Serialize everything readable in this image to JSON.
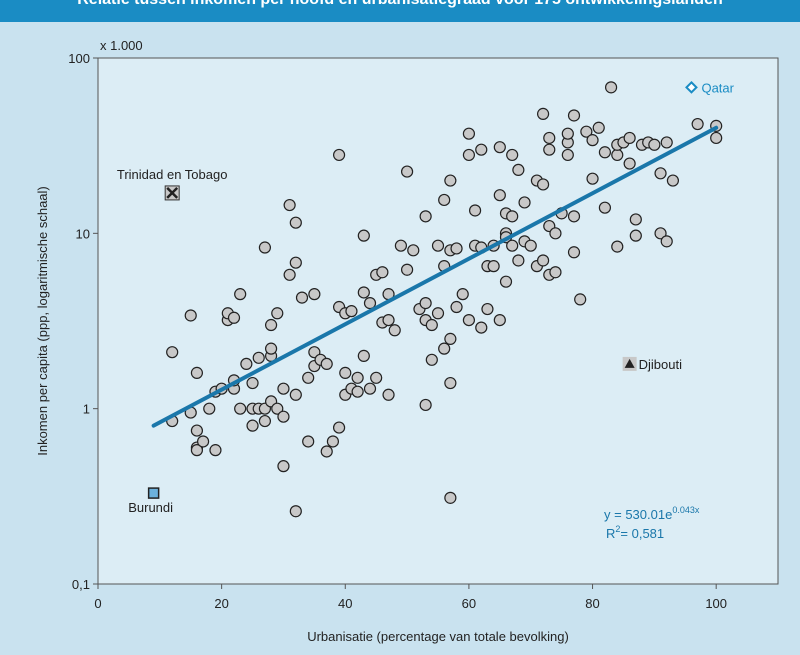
{
  "title": "Relatie tussen inkomen per hoofd en urbanisatiegraad voor 175 ontwikkelingslanden",
  "chart_data": {
    "type": "scatter",
    "xlabel": "Urbanisatie (percentage van totale bevolking)",
    "ylabel": "Inkomen per capita (ppp, logaritmische schaal)",
    "y_unit_note": "x 1.000",
    "xlim": [
      0,
      110
    ],
    "ylim": [
      0.1,
      100
    ],
    "y_scale": "log",
    "grid": false,
    "x_ticks": [
      0,
      20,
      40,
      60,
      80,
      100
    ],
    "x_tick_labels": [
      "0",
      "20",
      "40",
      "60",
      "80",
      "100"
    ],
    "y_ticks": [
      0.1,
      1,
      10,
      100
    ],
    "y_tick_labels": [
      "0,1",
      "1",
      "10",
      "100"
    ],
    "marker_color": "#c8c8c8",
    "trend_color": "#1a77aa",
    "trendline": {
      "equation_label": "y = 530.01e",
      "exponent_label": "0.043x",
      "r2_label": "R",
      "r2_sup": "2",
      "r2_value": "= 0,581",
      "from": [
        9,
        0.8
      ],
      "to": [
        100,
        40
      ]
    },
    "highlighted": [
      {
        "name": "Qatar",
        "x": 96,
        "y": 68,
        "marker": "diamond",
        "color": "#1a8cc4"
      },
      {
        "name": "Trinidad en Tobago",
        "x": 12,
        "y": 17,
        "marker": "cross-square",
        "color": "#333333"
      },
      {
        "name": "Burundi",
        "x": 9,
        "y": 0.33,
        "marker": "square",
        "color": "#6cb1dc"
      },
      {
        "name": "Djibouti",
        "x": 86,
        "y": 1.8,
        "marker": "triangle",
        "color": "#333333"
      }
    ],
    "points": [
      [
        12,
        2.1
      ],
      [
        12,
        0.85
      ],
      [
        15,
        3.4
      ],
      [
        15,
        0.95
      ],
      [
        16,
        0.6
      ],
      [
        16,
        0.58
      ],
      [
        16,
        0.75
      ],
      [
        16,
        1.6
      ],
      [
        17,
        0.65
      ],
      [
        18,
        1.0
      ],
      [
        19,
        0.58
      ],
      [
        19,
        1.25
      ],
      [
        20,
        1.3
      ],
      [
        21,
        3.2
      ],
      [
        21,
        3.5
      ],
      [
        22,
        1.3
      ],
      [
        22,
        3.3
      ],
      [
        22,
        1.45
      ],
      [
        23,
        1.0
      ],
      [
        23,
        4.5
      ],
      [
        24,
        1.8
      ],
      [
        25,
        1.4
      ],
      [
        25,
        0.8
      ],
      [
        25,
        1.0
      ],
      [
        26,
        1.95
      ],
      [
        26,
        1.0
      ],
      [
        27,
        8.3
      ],
      [
        27,
        1.0
      ],
      [
        27,
        0.85
      ],
      [
        28,
        2.0
      ],
      [
        28,
        3.0
      ],
      [
        28,
        2.2
      ],
      [
        28,
        1.1
      ],
      [
        29,
        3.5
      ],
      [
        29,
        1.0
      ],
      [
        30,
        0.47
      ],
      [
        30,
        0.9
      ],
      [
        30,
        1.3
      ],
      [
        31,
        14.5
      ],
      [
        31,
        5.8
      ],
      [
        32,
        0.26
      ],
      [
        32,
        6.8
      ],
      [
        32,
        11.5
      ],
      [
        32,
        1.2
      ],
      [
        33,
        4.3
      ],
      [
        34,
        0.65
      ],
      [
        34,
        1.5
      ],
      [
        35,
        4.5
      ],
      [
        35,
        2.1
      ],
      [
        35,
        1.75
      ],
      [
        36,
        1.9
      ],
      [
        37,
        0.57
      ],
      [
        37,
        1.8
      ],
      [
        38,
        0.65
      ],
      [
        39,
        28
      ],
      [
        39,
        3.8
      ],
      [
        39,
        0.78
      ],
      [
        40,
        3.5
      ],
      [
        40,
        1.6
      ],
      [
        40,
        1.2
      ],
      [
        41,
        3.6
      ],
      [
        41,
        1.3
      ],
      [
        42,
        1.5
      ],
      [
        42,
        1.25
      ],
      [
        43,
        9.7
      ],
      [
        43,
        4.6
      ],
      [
        43,
        2.0
      ],
      [
        44,
        4.0
      ],
      [
        44,
        1.3
      ],
      [
        45,
        5.8
      ],
      [
        45,
        1.5
      ],
      [
        46,
        6.0
      ],
      [
        46,
        3.1
      ],
      [
        47,
        4.5
      ],
      [
        47,
        3.2
      ],
      [
        47,
        1.2
      ],
      [
        48,
        2.8
      ],
      [
        49,
        8.5
      ],
      [
        50,
        22.5
      ],
      [
        50,
        6.2
      ],
      [
        51,
        8.0
      ],
      [
        52,
        3.7
      ],
      [
        53,
        12.5
      ],
      [
        53,
        4.0
      ],
      [
        53,
        3.2
      ],
      [
        53,
        1.05
      ],
      [
        54,
        1.9
      ],
      [
        54,
        3.0
      ],
      [
        55,
        8.5
      ],
      [
        55,
        3.5
      ],
      [
        56,
        15.5
      ],
      [
        56,
        6.5
      ],
      [
        56,
        2.2
      ],
      [
        57,
        20
      ],
      [
        57,
        8.0
      ],
      [
        57,
        2.5
      ],
      [
        57,
        1.4
      ],
      [
        57,
        0.31
      ],
      [
        58,
        3.8
      ],
      [
        58,
        8.2
      ],
      [
        59,
        4.5
      ],
      [
        60,
        37
      ],
      [
        60,
        28
      ],
      [
        60,
        3.2
      ],
      [
        61,
        8.5
      ],
      [
        61,
        13.5
      ],
      [
        62,
        30
      ],
      [
        62,
        8.3
      ],
      [
        62,
        2.9
      ],
      [
        63,
        6.5
      ],
      [
        63,
        3.7
      ],
      [
        64,
        8.5
      ],
      [
        64,
        6.5
      ],
      [
        65,
        16.5
      ],
      [
        65,
        31
      ],
      [
        65,
        3.2
      ],
      [
        66,
        13
      ],
      [
        66,
        10
      ],
      [
        66,
        9.5
      ],
      [
        66,
        5.3
      ],
      [
        67,
        12.5
      ],
      [
        67,
        8.5
      ],
      [
        67,
        28
      ],
      [
        68,
        23
      ],
      [
        68,
        7.0
      ],
      [
        69,
        15
      ],
      [
        69,
        9.0
      ],
      [
        70,
        8.5
      ],
      [
        71,
        20
      ],
      [
        71,
        6.5
      ],
      [
        72,
        7.0
      ],
      [
        72,
        19
      ],
      [
        72,
        48
      ],
      [
        73,
        35
      ],
      [
        73,
        30
      ],
      [
        73,
        11
      ],
      [
        73,
        5.8
      ],
      [
        74,
        6.0
      ],
      [
        74,
        10
      ],
      [
        75,
        13
      ],
      [
        76,
        33
      ],
      [
        76,
        28
      ],
      [
        76,
        37
      ],
      [
        77,
        47
      ],
      [
        77,
        12.5
      ],
      [
        77,
        7.8
      ],
      [
        78,
        4.2
      ],
      [
        79,
        38
      ],
      [
        80,
        34
      ],
      [
        80,
        20.5
      ],
      [
        81,
        40
      ],
      [
        82,
        14
      ],
      [
        82,
        29
      ],
      [
        83,
        68
      ],
      [
        84,
        8.4
      ],
      [
        84,
        28
      ],
      [
        84,
        32
      ],
      [
        85,
        33
      ],
      [
        86,
        25
      ],
      [
        86,
        35
      ],
      [
        87,
        9.7
      ],
      [
        87,
        12
      ],
      [
        88,
        32
      ],
      [
        89,
        33
      ],
      [
        90,
        32
      ],
      [
        91,
        10
      ],
      [
        91,
        22
      ],
      [
        92,
        33
      ],
      [
        92,
        9.0
      ],
      [
        93,
        20
      ],
      [
        97,
        42
      ],
      [
        100,
        35
      ],
      [
        100,
        41
      ]
    ]
  }
}
